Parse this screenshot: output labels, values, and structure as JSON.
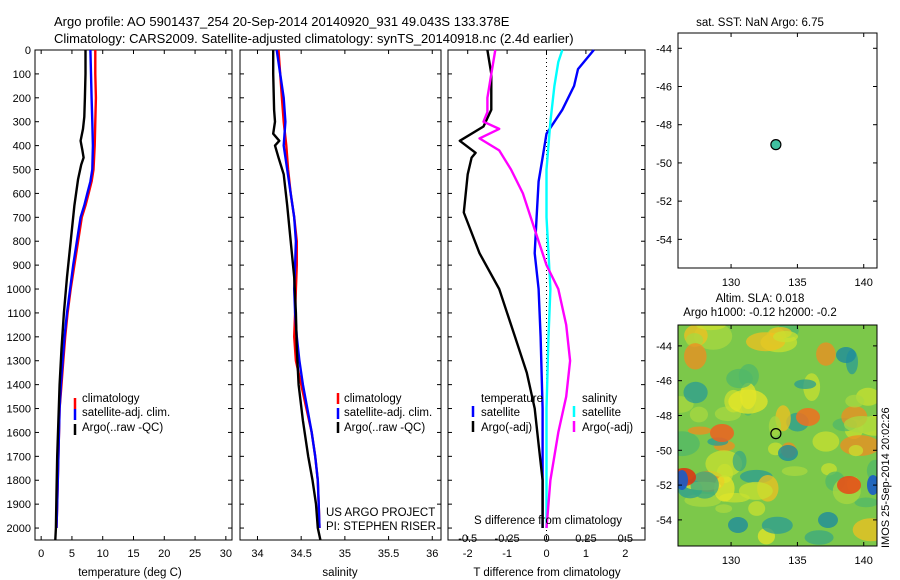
{
  "title_line1": "Argo profile: AO 5901437_254 20-Sep-2014 20140920_931 49.043S 133.378E",
  "title_line2": "Climatology: CARS2009. Satellite-adjusted climatology: synTS_20140918.nc (2.4d earlier)",
  "colors": {
    "climatology": "#ff0000",
    "satellite": "#0000ff",
    "argo": "#000000",
    "sal_satellite": "#00ffff",
    "sal_argo": "#ff00ff",
    "float_marker": "#40c0a0"
  },
  "chart_data": [
    {
      "id": "temperature",
      "type": "line",
      "xlabel": "temperature (deg C)",
      "ylabel": "",
      "xlim": [
        -1,
        31
      ],
      "ylim": [
        2050,
        0
      ],
      "xticks": [
        0,
        5,
        10,
        15,
        20,
        25,
        30
      ],
      "yticks": [
        0,
        100,
        200,
        300,
        400,
        500,
        600,
        700,
        800,
        900,
        1000,
        1100,
        1200,
        1300,
        1400,
        1500,
        1600,
        1700,
        1800,
        1900,
        2000
      ],
      "legend": [
        "climatology",
        "satellite-adj. clim.",
        "Argo(..raw -QC)"
      ],
      "series": [
        {
          "name": "climatology",
          "color": "#ff0000",
          "x": [
            8.8,
            8.8,
            8.9,
            8.8,
            8.7,
            8.5,
            8.2,
            7.7,
            7.2,
            6.6,
            6.0,
            5.4,
            4.8,
            4.3,
            3.9,
            3.6,
            3.3,
            3.0,
            2.8,
            2.6,
            2.5
          ],
          "y": [
            0,
            100,
            200,
            300,
            400,
            500,
            550,
            600,
            650,
            700,
            800,
            900,
            1000,
            1100,
            1200,
            1300,
            1400,
            1500,
            1700,
            1900,
            2000
          ]
        },
        {
          "name": "satellite-adj. clim.",
          "color": "#0000ff",
          "x": [
            8.0,
            8.1,
            8.2,
            8.3,
            8.4,
            8.3,
            8.0,
            7.5,
            7.0,
            6.4,
            5.8,
            5.2,
            4.7,
            4.2,
            3.8,
            3.5,
            3.2,
            3.0,
            2.8,
            2.6,
            2.5
          ],
          "y": [
            0,
            100,
            200,
            300,
            400,
            500,
            550,
            600,
            650,
            700,
            800,
            900,
            1000,
            1100,
            1200,
            1300,
            1400,
            1500,
            1700,
            1900,
            2000
          ]
        },
        {
          "name": "Argo(..raw -QC)",
          "color": "#000000",
          "x": [
            7.2,
            7.2,
            7.1,
            7.0,
            6.8,
            6.4,
            6.7,
            6.9,
            6.5,
            6.0,
            5.4,
            4.8,
            4.2,
            3.7,
            3.3,
            3.0,
            2.8,
            2.6,
            2.5,
            2.4,
            2.3
          ],
          "y": [
            0,
            100,
            200,
            280,
            330,
            380,
            420,
            450,
            480,
            540,
            650,
            800,
            950,
            1100,
            1250,
            1400,
            1550,
            1700,
            1850,
            2000,
            2050
          ]
        }
      ]
    },
    {
      "id": "salinity",
      "type": "line",
      "xlabel": "salinity",
      "ylabel": "",
      "xlim": [
        33.8,
        36.1
      ],
      "ylim": [
        2050,
        0
      ],
      "xticks": [
        34,
        34.5,
        35,
        35.5,
        36
      ],
      "legend": [
        "climatology",
        "satellite-adj. clim.",
        "Argo(..raw -QC)"
      ],
      "series": [
        {
          "name": "climatology",
          "color": "#ff0000",
          "x": [
            34.24,
            34.26,
            34.28,
            34.3,
            34.33,
            34.35,
            34.38,
            34.42,
            34.45,
            34.45,
            34.44,
            34.43,
            34.42,
            34.44,
            34.5,
            34.56,
            34.62,
            34.66,
            34.69,
            34.7,
            34.71
          ],
          "y": [
            0,
            100,
            200,
            300,
            400,
            500,
            600,
            700,
            800,
            900,
            1000,
            1100,
            1200,
            1300,
            1400,
            1500,
            1600,
            1700,
            1800,
            1900,
            2000
          ]
        },
        {
          "name": "satellite-adj. clim.",
          "color": "#0000ff",
          "x": [
            34.22,
            34.26,
            34.3,
            34.32,
            34.3,
            34.34,
            34.38,
            34.42,
            34.44,
            34.43,
            34.42,
            34.43,
            34.45,
            34.48,
            34.52,
            34.57,
            34.62,
            34.66,
            34.69,
            34.7,
            34.71
          ],
          "y": [
            0,
            100,
            200,
            300,
            400,
            500,
            600,
            700,
            800,
            900,
            1000,
            1100,
            1200,
            1300,
            1400,
            1500,
            1600,
            1700,
            1800,
            1900,
            2000
          ]
        },
        {
          "name": "Argo(..raw -QC)",
          "color": "#000000",
          "x": [
            34.18,
            34.18,
            34.19,
            34.2,
            34.18,
            34.25,
            34.2,
            34.24,
            34.3,
            34.34,
            34.38,
            34.42,
            34.44,
            34.45,
            34.47,
            34.52,
            34.58,
            34.63,
            34.67,
            34.69,
            34.72
          ],
          "y": [
            0,
            100,
            250,
            300,
            350,
            380,
            400,
            450,
            520,
            650,
            800,
            950,
            1100,
            1250,
            1400,
            1550,
            1700,
            1800,
            1900,
            2000,
            2050
          ]
        }
      ]
    },
    {
      "id": "differences",
      "type": "line",
      "xlabel": "T difference from climatology",
      "xlabel_top": "S difference from climatology",
      "ylabel": "",
      "xlim": [
        -2.5,
        2.5
      ],
      "ylim": [
        2050,
        0
      ],
      "xticks": [
        -2,
        -1,
        0,
        1,
        2
      ],
      "xtick_labels_top": [
        "-0.5",
        "-0.25",
        "0",
        "0.25",
        "0.5"
      ],
      "xticks_top": [
        -2,
        -1,
        0,
        1,
        2
      ],
      "legend_temperature": {
        "header": "temperature",
        "items": [
          "satellite",
          "Argo(-adj)"
        ]
      },
      "legend_salinity": {
        "header": "salinity",
        "items": [
          "satellite",
          "Argo(-adj)"
        ]
      },
      "series": [
        {
          "name": "temperature satellite",
          "color": "#0000ff",
          "x": [
            1.2,
            0.8,
            0.7,
            0.4,
            0.0,
            -0.1,
            -0.2,
            -0.25,
            -0.3,
            -0.2,
            -0.15,
            -0.1,
            -0.1,
            -0.1
          ],
          "y": [
            0,
            80,
            150,
            250,
            350,
            450,
            550,
            700,
            850,
            1000,
            1200,
            1500,
            1800,
            2000
          ]
        },
        {
          "name": "temperature Argo(-adj)",
          "color": "#000000",
          "x": [
            -1.5,
            -1.4,
            -1.4,
            -1.6,
            -2.2,
            -1.8,
            -1.9,
            -2.0,
            -2.1,
            -1.7,
            -1.2,
            -0.8,
            -0.5,
            -0.3,
            -0.2,
            -0.1,
            -0.1
          ],
          "y": [
            0,
            100,
            250,
            320,
            380,
            430,
            450,
            520,
            680,
            850,
            1000,
            1200,
            1350,
            1500,
            1650,
            1800,
            2000
          ]
        },
        {
          "name": "salinity satellite",
          "color": "#00ffff",
          "x": [
            0.4,
            0.3,
            0.2,
            0.1,
            0.0,
            0.0,
            0.05,
            0.1,
            0.05,
            0.0,
            0.0,
            0.0
          ],
          "y": [
            0,
            50,
            150,
            300,
            500,
            700,
            850,
            1000,
            1200,
            1500,
            1800,
            2000
          ]
        },
        {
          "name": "salinity Argo(-adj)",
          "color": "#ff00ff",
          "x": [
            -1.3,
            -1.4,
            -1.5,
            -1.5,
            -1.6,
            -1.2,
            -1.7,
            -1.2,
            -0.9,
            -0.6,
            -0.4,
            -0.2,
            0.0,
            0.3,
            0.5,
            0.6,
            0.5,
            0.3,
            0.1,
            0.0
          ],
          "y": [
            0,
            100,
            200,
            260,
            300,
            330,
            370,
            420,
            500,
            600,
            700,
            800,
            900,
            1000,
            1150,
            1300,
            1450,
            1600,
            1800,
            2000
          ]
        }
      ]
    },
    {
      "id": "sst_map",
      "type": "scatter",
      "title": "sat. SST: NaN Argo: 6.75",
      "xlim": [
        126,
        141
      ],
      "ylim": [
        -55.5,
        -43.2
      ],
      "xticks": [
        130,
        135,
        140
      ],
      "yticks": [
        -44,
        -46,
        -48,
        -50,
        -52,
        -54
      ],
      "points": [
        {
          "x": 133.378,
          "y": -49.043
        }
      ]
    },
    {
      "id": "sla_map",
      "type": "heatmap",
      "title_line1": "Altim. SLA: 0.018",
      "title_line2": "Argo h1000: -0.12 h2000: -0.2",
      "xlim": [
        126,
        141
      ],
      "ylim": [
        -55.5,
        -42.8
      ],
      "xticks": [
        130,
        135,
        140
      ],
      "yticks": [
        -44,
        -46,
        -48,
        -50,
        -52,
        -54
      ],
      "points": [
        {
          "x": 133.378,
          "y": -49.043
        }
      ]
    }
  ],
  "project_line1": "US ARGO PROJECT",
  "project_line2": "PI: STEPHEN RISER",
  "side_stamp": "IMOS 25-Sep-2014 20:02:26"
}
